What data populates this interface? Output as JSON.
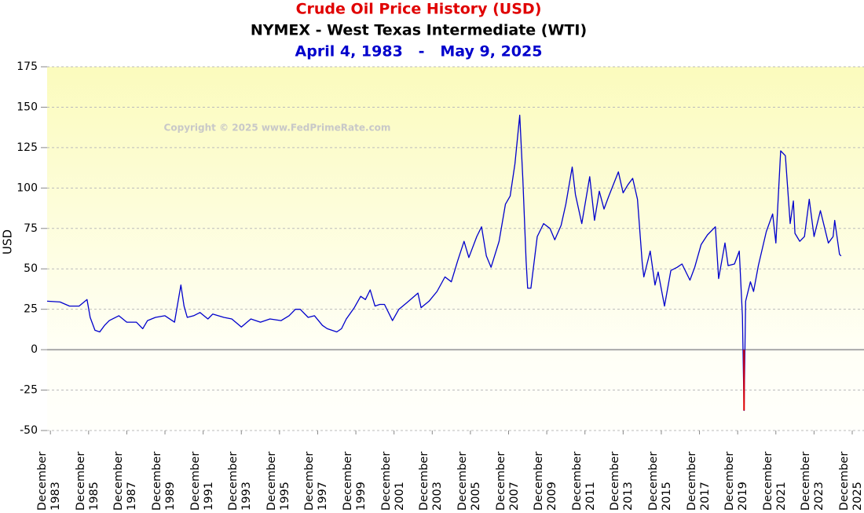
{
  "chart_data": {
    "type": "line",
    "title": "Crude Oil Price History (USD)",
    "subtitle": "NYMEX - West Texas Intermediate (WTI)",
    "date_range": "April 4, 1983   -   May 9, 2025",
    "annotation": "Copyright © 2025 www.FedPrimeRate.com",
    "ylabel": "USD",
    "x": [
      "1983-04",
      "1983-10",
      "1984-06",
      "1984-12",
      "1985-06",
      "1985-11",
      "1986-01",
      "1986-04",
      "1986-07",
      "1986-10",
      "1987-01",
      "1987-07",
      "1987-12",
      "1988-06",
      "1988-10",
      "1989-01",
      "1989-06",
      "1989-12",
      "1990-06",
      "1990-10",
      "1990-12",
      "1991-02",
      "1991-06",
      "1991-10",
      "1992-03",
      "1992-06",
      "1993-01",
      "1993-06",
      "1993-12",
      "1994-06",
      "1994-12",
      "1995-06",
      "1996-01",
      "1996-06",
      "1996-10",
      "1997-01",
      "1997-06",
      "1997-10",
      "1998-03",
      "1998-06",
      "1998-12",
      "1999-03",
      "1999-06",
      "1999-11",
      "2000-03",
      "2000-06",
      "2000-09",
      "2000-12",
      "2001-03",
      "2001-06",
      "2001-11",
      "2002-03",
      "2002-08",
      "2003-03",
      "2003-05",
      "2003-10",
      "2004-03",
      "2004-08",
      "2004-12",
      "2005-04",
      "2005-08",
      "2005-11",
      "2006-04",
      "2006-07",
      "2006-10",
      "2007-01",
      "2007-06",
      "2007-10",
      "2008-01",
      "2008-04",
      "2008-07",
      "2008-09",
      "2008-11",
      "2008-12",
      "2009-02",
      "2009-06",
      "2009-10",
      "2010-02",
      "2010-05",
      "2010-09",
      "2010-12",
      "2011-04",
      "2011-06",
      "2011-10",
      "2012-03",
      "2012-06",
      "2012-09",
      "2012-12",
      "2013-03",
      "2013-09",
      "2013-12",
      "2014-03",
      "2014-06",
      "2014-09",
      "2014-12",
      "2015-01",
      "2015-05",
      "2015-08",
      "2015-10",
      "2016-02",
      "2016-06",
      "2016-10",
      "2017-01",
      "2017-06",
      "2017-09",
      "2018-01",
      "2018-05",
      "2018-10",
      "2018-12",
      "2019-04",
      "2019-06",
      "2019-10",
      "2020-01",
      "2020-03",
      "2020-04",
      "2020-05",
      "2020-08",
      "2020-10",
      "2021-01",
      "2021-06",
      "2021-10",
      "2021-12",
      "2022-03",
      "2022-06",
      "2022-09",
      "2022-11",
      "2022-12",
      "2023-03",
      "2023-06",
      "2023-09",
      "2023-12",
      "2024-04",
      "2024-09",
      "2024-12",
      "2025-01",
      "2025-04",
      "2025-05"
    ],
    "series": [
      {
        "color": "#0000cc",
        "negative_color": "#e00000",
        "values": [
          30,
          30,
          29.5,
          27,
          27,
          31,
          20,
          12,
          11,
          15,
          18,
          21,
          17,
          17,
          13,
          18,
          20,
          21,
          17,
          40,
          27,
          20,
          21,
          23,
          19,
          22,
          20,
          19,
          14,
          19,
          17,
          19,
          18,
          21,
          25,
          25,
          20,
          21,
          15,
          13,
          11,
          13,
          19,
          26,
          33,
          31,
          37,
          27,
          28,
          28,
          18,
          25,
          29,
          35,
          26,
          30,
          36,
          45,
          42,
          55,
          67,
          57,
          70,
          76,
          58,
          51,
          67,
          90,
          95,
          115,
          145,
          105,
          55,
          38,
          38,
          70,
          78,
          75,
          68,
          77,
          90,
          113,
          96,
          78,
          107,
          80,
          98,
          87,
          95,
          110,
          97,
          102,
          106,
          93,
          54,
          45,
          61,
          40,
          48,
          27,
          49,
          51,
          53,
          43,
          51,
          65,
          71,
          76,
          44,
          66,
          52,
          53,
          61,
          21,
          -37.63,
          30,
          42,
          36,
          52,
          73,
          84,
          66,
          123,
          120,
          78,
          92,
          72,
          67,
          70,
          93,
          70,
          86,
          66,
          70,
          80,
          59,
          58
        ]
      }
    ],
    "xlim": [
      "1983-04",
      "2025-12"
    ],
    "xticks": [
      {
        "value": "1983-12",
        "label": "December 1983"
      },
      {
        "value": "1985-12",
        "label": "December 1985"
      },
      {
        "value": "1987-12",
        "label": "December 1987"
      },
      {
        "value": "1989-12",
        "label": "December 1989"
      },
      {
        "value": "1991-12",
        "label": "December 1991"
      },
      {
        "value": "1993-12",
        "label": "December 1993"
      },
      {
        "value": "1995-12",
        "label": "December 1995"
      },
      {
        "value": "1997-12",
        "label": "December 1997"
      },
      {
        "value": "1999-12",
        "label": "December 1999"
      },
      {
        "value": "2001-12",
        "label": "December 2001"
      },
      {
        "value": "2003-12",
        "label": "December 2003"
      },
      {
        "value": "2005-12",
        "label": "December 2005"
      },
      {
        "value": "2007-12",
        "label": "December 2007"
      },
      {
        "value": "2009-12",
        "label": "December 2009"
      },
      {
        "value": "2011-12",
        "label": "December 2011"
      },
      {
        "value": "2013-12",
        "label": "December 2013"
      },
      {
        "value": "2015-12",
        "label": "December 2015"
      },
      {
        "value": "2017-12",
        "label": "December 2017"
      },
      {
        "value": "2019-12",
        "label": "December 2019"
      },
      {
        "value": "2021-12",
        "label": "December 2021"
      },
      {
        "value": "2023-12",
        "label": "December 2023"
      },
      {
        "value": "2025-12",
        "label": "December 2025"
      }
    ],
    "ylim": [
      -50,
      175
    ],
    "yticks": [
      -50,
      -25,
      0,
      25,
      50,
      75,
      100,
      125,
      150,
      175
    ],
    "grid": true
  }
}
